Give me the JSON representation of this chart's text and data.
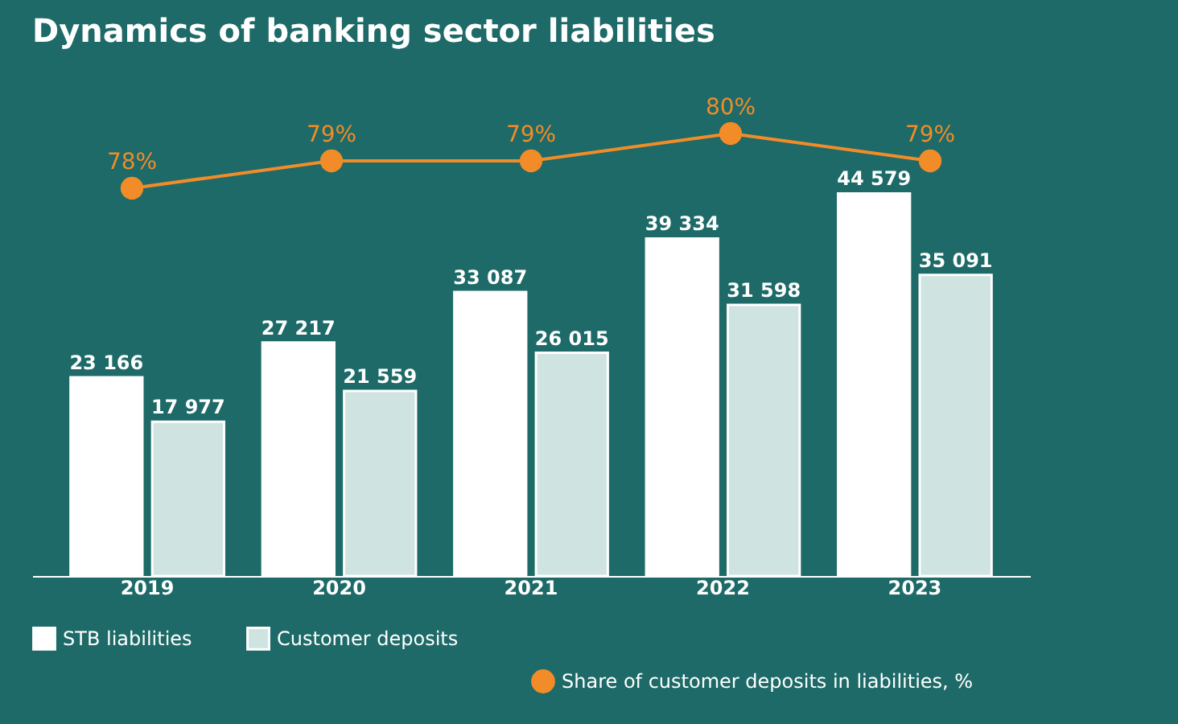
{
  "chart_data": [
    {
      "type": "line",
      "title": "Dynamics of banking sector liabilities",
      "categories": [
        null,
        null,
        null,
        null,
        null
      ],
      "series": [
        {
          "name": "Share of customer deposits in liabilities, %",
          "color": "#f28c28",
          "values": [
            78,
            79,
            79,
            80,
            79
          ],
          "value_labels": [
            "78%",
            "79%",
            "79%",
            "80%",
            "79%"
          ]
        }
      ],
      "data_labels": true,
      "legend": "bottom",
      "marker": "circle"
    },
    {
      "type": "bar",
      "categories": [
        "2019",
        "2020",
        "2021",
        "2022",
        "2023"
      ],
      "series": [
        {
          "name": "STB liabilities",
          "color": "#ffffff",
          "values": [
            23166,
            27217,
            33087,
            39334,
            44579
          ],
          "value_labels": [
            "23 166",
            "27 217",
            "33 087",
            "39 334",
            "44 579"
          ]
        },
        {
          "name": "Customer deposits",
          "color": "#cfe3e1",
          "values": [
            17977,
            21559,
            26015,
            31598,
            35091
          ],
          "value_labels": [
            "17 977",
            "21 559",
            "26 015",
            "31 598",
            "35 091"
          ]
        }
      ],
      "data_labels": true,
      "legend": "bottom",
      "grid": false
    }
  ]
}
